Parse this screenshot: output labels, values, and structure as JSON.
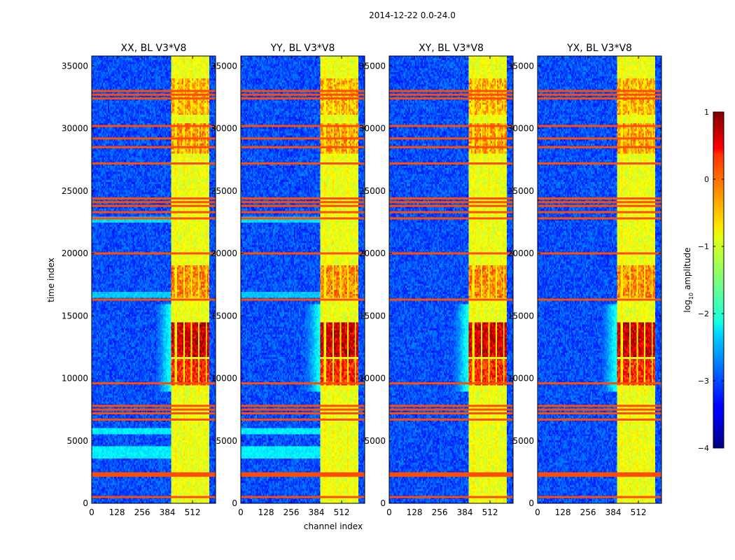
{
  "chart_data": {
    "type": "heatmap",
    "suptitle": "2014-12-22 0.0-24.0",
    "xlabel": "channel index",
    "ylabel": "time index",
    "xlim": [
      0,
      629
    ],
    "ylim": [
      0,
      35800
    ],
    "xticks": [
      0,
      128,
      256,
      384,
      512
    ],
    "yticks": [
      0,
      5000,
      10000,
      15000,
      20000,
      25000,
      30000,
      35000
    ],
    "panels": [
      {
        "title": "XX, BL V3*V8"
      },
      {
        "title": "YY, BL V3*V8"
      },
      {
        "title": "XY, BL V3*V8"
      },
      {
        "title": "YX, BL V3*V8"
      }
    ],
    "colorbar": {
      "label_base": "log",
      "label_sub": "10",
      "label_rest": " amplitude",
      "range": [
        -4,
        1
      ],
      "ticks": [
        "1",
        "0",
        "−1",
        "−2",
        "−3",
        "−4"
      ],
      "colormap": "jet"
    },
    "background_level": -3.0,
    "signal_band": {
      "channels": [
        400,
        600
      ],
      "level": -1.0
    },
    "band_edge_bright_zone": {
      "time_range": [
        9000,
        16000
      ],
      "channels": [
        330,
        400
      ],
      "level": -2.0
    },
    "gap_channels": [
      427,
      467,
      507,
      543,
      580
    ],
    "strong_emission_blocks": [
      {
        "time_range": [
          9500,
          11500
        ],
        "level": 0.2
      },
      {
        "time_range": [
          11700,
          14500
        ],
        "level": 0.6
      },
      {
        "time_range": [
          16500,
          19000
        ],
        "level": -0.3
      },
      {
        "time_range": [
          28000,
          30500
        ],
        "level": -0.4
      },
      {
        "time_range": [
          31000,
          34000
        ],
        "level": -0.5
      }
    ],
    "flagged_rows": [
      500,
      2200,
      2300,
      2400,
      6700,
      7200,
      7500,
      7800,
      9600,
      16300,
      20000,
      22800,
      23300,
      23800,
      24100,
      24400,
      27200,
      28500,
      29200,
      30200,
      32400,
      32700,
      33000
    ],
    "quiet_bands_low_channels": [
      {
        "time_range": [
          3500,
          4600
        ],
        "level": -2.2
      },
      {
        "time_range": [
          5600,
          6100
        ],
        "level": -2.2
      },
      {
        "time_range": [
          16500,
          16900
        ],
        "level": -2.4
      },
      {
        "time_range": [
          22400,
          22900
        ],
        "level": -2.3
      }
    ]
  }
}
